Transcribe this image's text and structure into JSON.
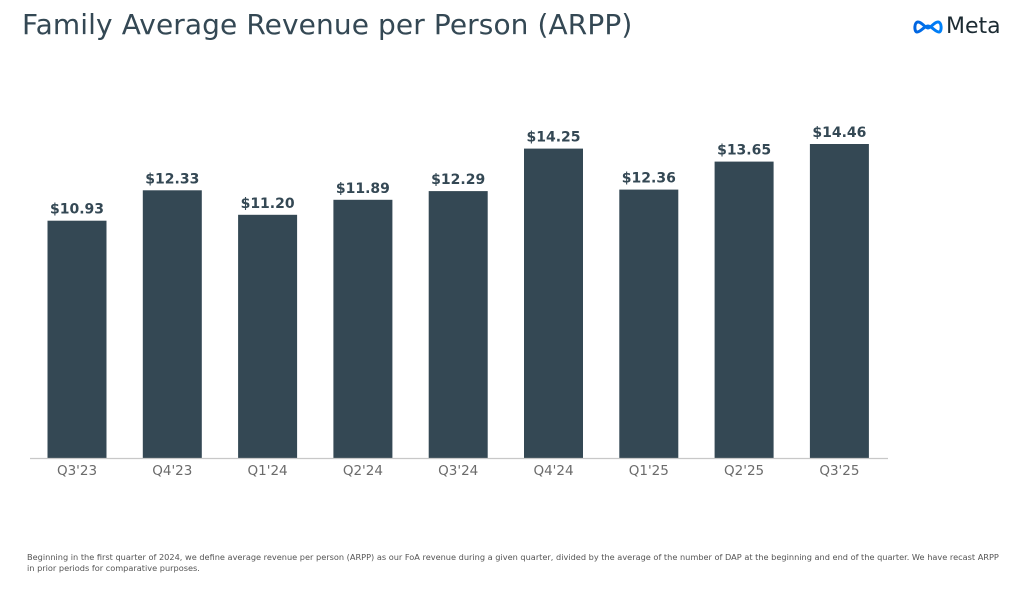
{
  "header": {
    "title": "Family Average Revenue per Person (ARPP)",
    "logo_text": "Meta",
    "logo_icon": "meta-infinity-logo-icon"
  },
  "footnote": "Beginning in the first quarter of 2024, we define average revenue per person (ARPP) as our FoA revenue during a given quarter, divided by the average of the number of DAP at the beginning and end of the quarter. We have recast ARPP in prior periods for comparative purposes.",
  "colors": {
    "bar": "#344854",
    "title": "#344854",
    "axis": "#c8c8c8",
    "tick_text": "#6b6b6b",
    "logo_blue": "#0866ff"
  },
  "chart_data": {
    "type": "bar",
    "title": "Family Average Revenue per Person (ARPP)",
    "xlabel": "",
    "ylabel": "",
    "categories": [
      "Q3'23",
      "Q4'23",
      "Q1'24",
      "Q2'24",
      "Q3'24",
      "Q4'24",
      "Q1'25",
      "Q2'25",
      "Q3'25"
    ],
    "values": [
      10.93,
      12.33,
      11.2,
      11.89,
      12.29,
      14.25,
      12.36,
      13.65,
      14.46
    ],
    "data_labels": [
      "$10.93",
      "$12.33",
      "$11.20",
      "$11.89",
      "$12.29",
      "$14.25",
      "$12.36",
      "$13.65",
      "$14.46"
    ],
    "unit": "USD",
    "ylim": [
      0,
      14.46
    ],
    "grid": false,
    "legend": "none"
  }
}
